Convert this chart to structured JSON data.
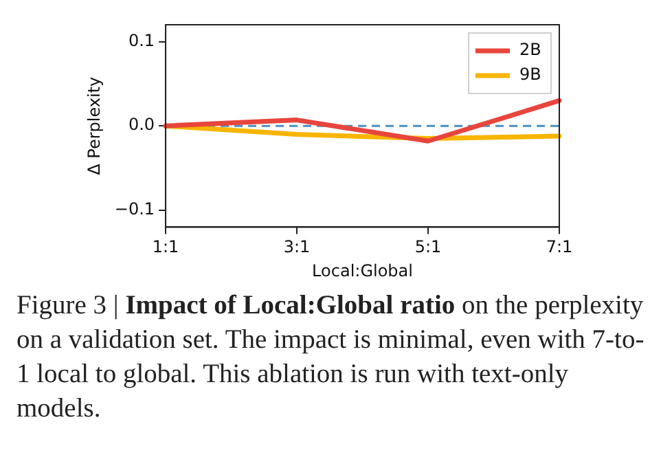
{
  "chart_data": {
    "type": "line",
    "xlabel": "Local:Global",
    "ylabel": "Δ Perplexity",
    "categories": [
      "1:1",
      "3:1",
      "5:1",
      "7:1"
    ],
    "series": [
      {
        "name": "2B",
        "color": "#e8453c",
        "values": [
          0,
          0.007,
          -0.018,
          0.03
        ]
      },
      {
        "name": "9B",
        "color": "#f7b500",
        "values": [
          0,
          -0.01,
          -0.015,
          -0.012
        ]
      }
    ],
    "ylim": [
      -0.12,
      0.12
    ],
    "yticks": [
      0.1,
      {
        "value": 0,
        "label": "0.0"
      },
      {
        "value": -0.1,
        "label": "−0.1"
      }
    ],
    "ref_lines": [
      {
        "axis": "y",
        "value": 0,
        "color": "#4a8fc4",
        "line_style": "dashed"
      }
    ],
    "grid": false,
    "legend": "top right",
    "marker": "none",
    "line_style": "solid",
    "annotations": [
      "Figure 3 |",
      "Impact of Local:Global ratio",
      "on the perplexity on a validation set. The impact is minimal, even with 7-to-1 local to global. This ablation is run with text-only models."
    ]
  }
}
